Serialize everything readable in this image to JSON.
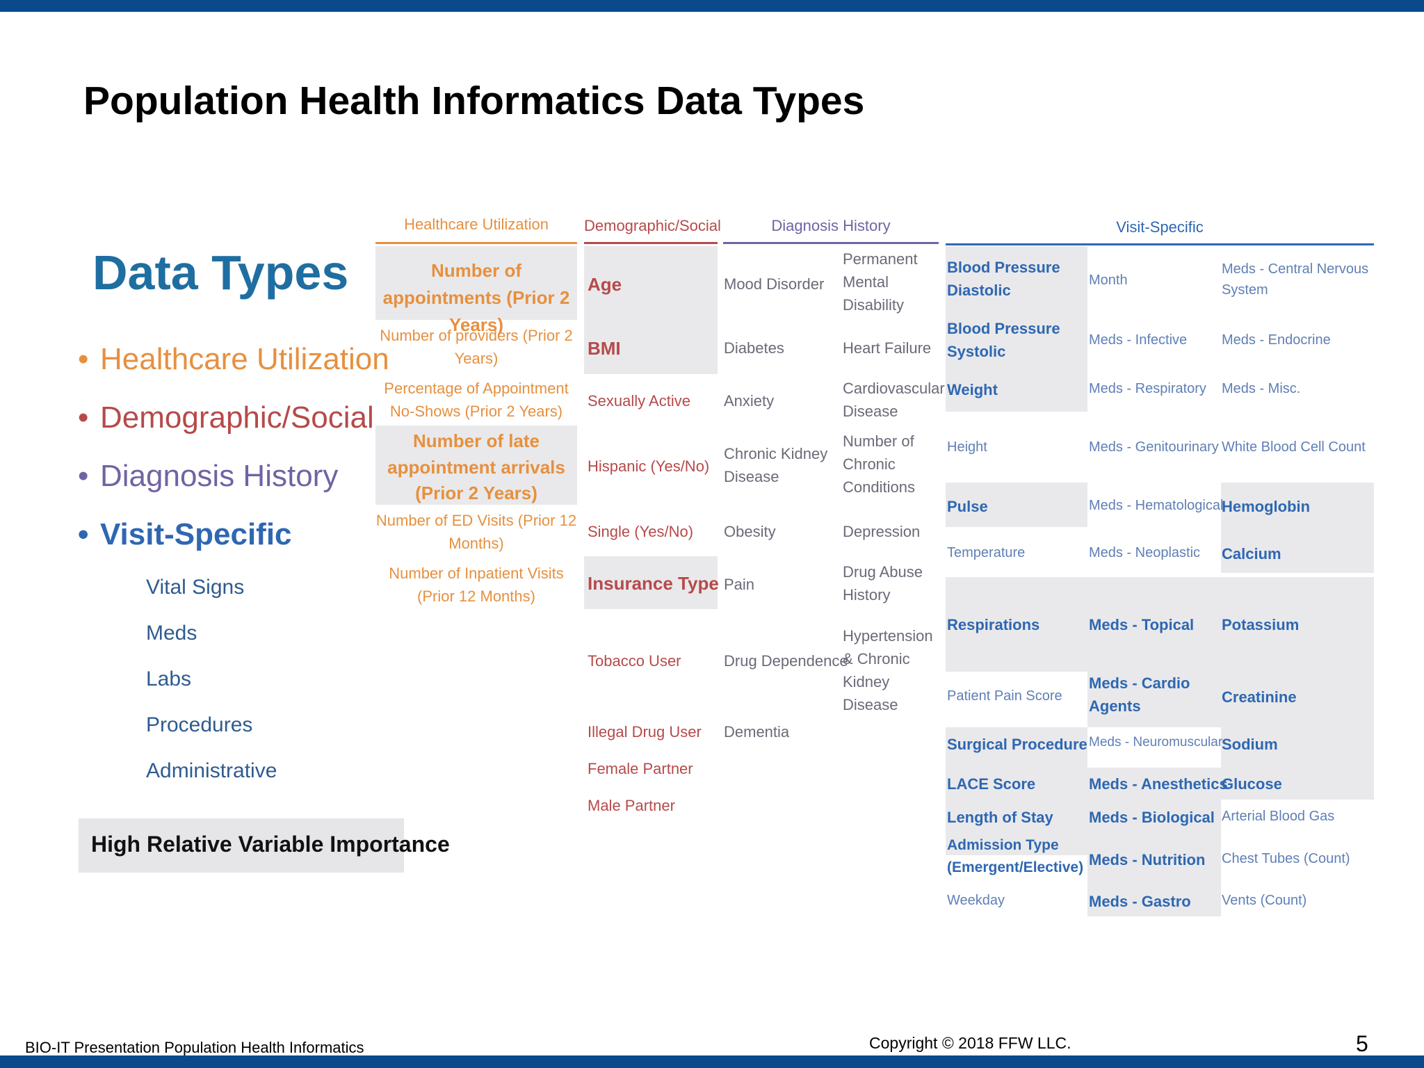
{
  "slide": {
    "title": "Population Health Informatics Data Types",
    "footer_left": "BIO-IT Presentation Population Health Informatics",
    "footer_copyright": "Copyright © 2018 FFW LLC.",
    "page_number": "5"
  },
  "legend": {
    "heading": "Data Types",
    "items": [
      {
        "label": "Healthcare Utilization",
        "color": "#e6903f"
      },
      {
        "label": "Demographic/Social",
        "color": "#b64a4a"
      },
      {
        "label": "Diagnosis History",
        "color": "#7163a3"
      },
      {
        "label": "Visit-Specific",
        "color": "#2e67b2"
      }
    ],
    "sub_items": [
      "Vital Signs",
      "Meds",
      "Labs",
      "Procedures",
      "Administrative"
    ],
    "note": "High Relative Variable Importance"
  },
  "columns": {
    "healthcare": {
      "header": "Healthcare Utilization",
      "color": "#e6903f"
    },
    "demographic": {
      "header": "Demographic/Social",
      "color": "#b64a4a"
    },
    "diagnosis": {
      "header": "Diagnosis History",
      "color": "#7163a3"
    },
    "visit": {
      "header": "Visit-Specific",
      "color": "#2e67b2"
    }
  },
  "healthcare_cells": [
    {
      "text": "Number of appointments (Prior 2 Years)",
      "highlight": true
    },
    {
      "text": "Number of providers (Prior 2 Years)",
      "highlight": false
    },
    {
      "text": "Percentage of Appointment No-Shows (Prior 2 Years)",
      "highlight": false
    },
    {
      "text": "Number of late appointment arrivals (Prior 2 Years)",
      "highlight": true
    },
    {
      "text": "Number of ED Visits (Prior 12 Months)",
      "highlight": false
    },
    {
      "text": "Number of Inpatient Visits (Prior 12 Months)",
      "highlight": false
    }
  ],
  "demographic_cells": [
    {
      "text": "Age",
      "highlight": true
    },
    {
      "text": "BMI",
      "highlight": true
    },
    {
      "text": "Sexually Active",
      "highlight": false
    },
    {
      "text": "Hispanic (Yes/No)",
      "highlight": false
    },
    {
      "text": "Single (Yes/No)",
      "highlight": false
    },
    {
      "text": "Insurance Type",
      "highlight": true
    },
    {
      "text": "Tobacco User",
      "highlight": false
    },
    {
      "text": "Illegal Drug User",
      "highlight": false
    },
    {
      "text": "Female Partner",
      "highlight": false
    },
    {
      "text": "Male Partner",
      "highlight": false
    }
  ],
  "diagnosis_cells": [
    "Mood Disorder",
    "Permanent Mental Disability",
    "Diabetes",
    "Heart Failure",
    "Anxiety",
    "Cardiovascular Disease",
    "Chronic Kidney Disease",
    "Number of Chronic Conditions",
    "Obesity",
    "Depression",
    "Pain",
    "Drug Abuse History",
    "Drug Dependence",
    "Hypertension & Chronic Kidney Disease",
    "Dementia"
  ],
  "visit_cells": [
    {
      "text": "Blood Pressure Diastolic",
      "highlight": true
    },
    {
      "text": "Month",
      "highlight": false
    },
    {
      "text": "Meds - Central Nervous System",
      "highlight": false
    },
    {
      "text": "Blood Pressure Systolic",
      "highlight": true
    },
    {
      "text": "Meds - Infective",
      "highlight": false
    },
    {
      "text": "Meds - Endocrine",
      "highlight": false
    },
    {
      "text": "Weight",
      "highlight": true
    },
    {
      "text": "Meds - Respiratory",
      "highlight": false
    },
    {
      "text": "Meds - Misc.",
      "highlight": false
    },
    {
      "text": "Height",
      "highlight": false
    },
    {
      "text": "Meds - Genitourinary",
      "highlight": false
    },
    {
      "text": "White Blood Cell Count",
      "highlight": false
    },
    {
      "text": "Pulse",
      "highlight": true
    },
    {
      "text": "Meds - Hematological",
      "highlight": false
    },
    {
      "text": "Hemoglobin",
      "highlight": true
    },
    {
      "text": "Temperature",
      "highlight": false
    },
    {
      "text": "Meds - Neoplastic",
      "highlight": false
    },
    {
      "text": "Calcium",
      "highlight": true
    },
    {
      "text": "Respirations",
      "highlight": true
    },
    {
      "text": "Meds - Topical",
      "highlight": true
    },
    {
      "text": "Potassium",
      "highlight": true
    },
    {
      "text": "Patient Pain Score",
      "highlight": false
    },
    {
      "text": "Meds - Cardio Agents",
      "highlight": true
    },
    {
      "text": "Creatinine",
      "highlight": true
    },
    {
      "text": "Surgical Procedure",
      "highlight": true
    },
    {
      "text": "Meds - Neuromuscular",
      "highlight": false
    },
    {
      "text": "Sodium",
      "highlight": true
    },
    {
      "text": "LACE Score",
      "highlight": true
    },
    {
      "text": "Meds - Anesthetics",
      "highlight": true
    },
    {
      "text": "Glucose",
      "highlight": true
    },
    {
      "text": "Length of Stay",
      "highlight": true
    },
    {
      "text": "Meds - Biological",
      "highlight": true
    },
    {
      "text": "Arterial Blood Gas",
      "highlight": false
    },
    {
      "text": "Admission Type (Emergent/Elective)",
      "highlight": true
    },
    {
      "text": "Meds - Nutrition",
      "highlight": true
    },
    {
      "text": "Chest Tubes (Count)",
      "highlight": false
    },
    {
      "text": "Weekday",
      "highlight": false
    },
    {
      "text": "Meds - Gastro",
      "highlight": true
    },
    {
      "text": "Vents (Count)",
      "highlight": false
    }
  ]
}
